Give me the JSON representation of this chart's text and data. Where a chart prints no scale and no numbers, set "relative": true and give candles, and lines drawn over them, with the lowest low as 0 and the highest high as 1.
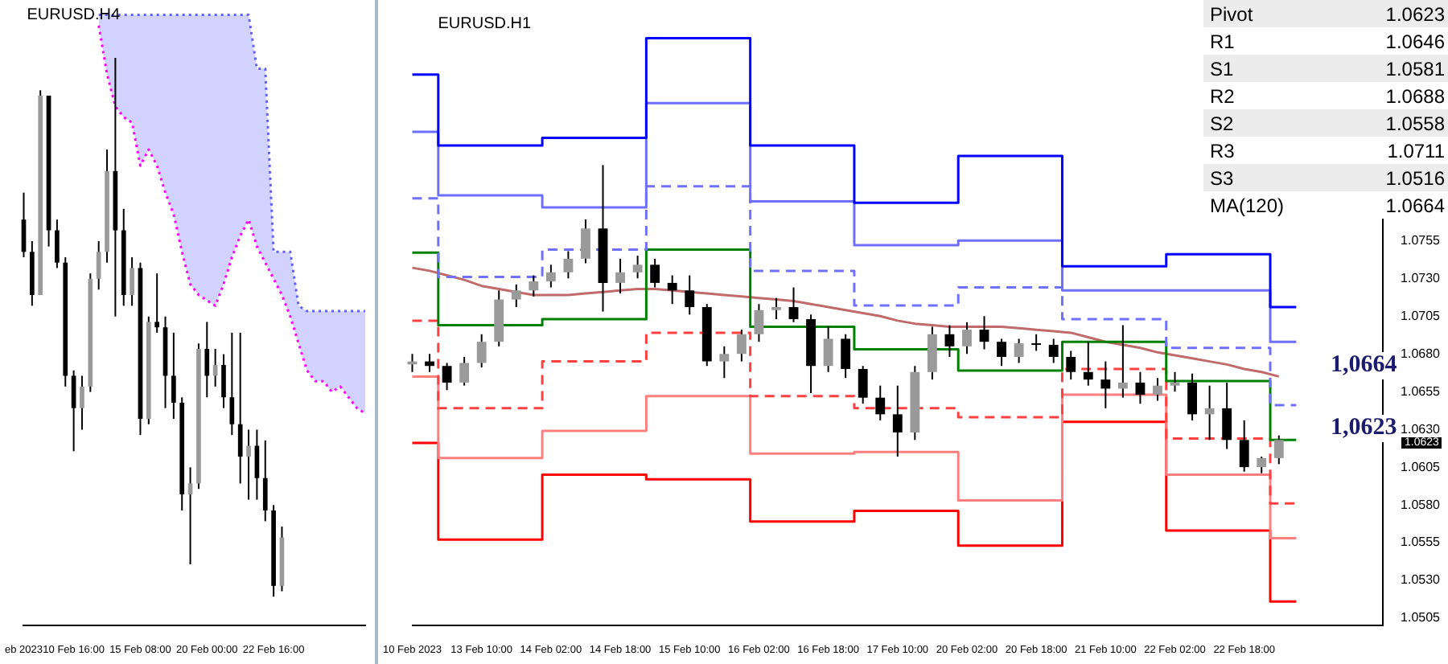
{
  "chart_data": [
    {
      "type": "candlestick",
      "title": "EURUSD.H4",
      "relative": true,
      "tick_labels": "x",
      "categories": [
        "eb 2023",
        null,
        null,
        null,
        null,
        null,
        "10 Feb 16:00",
        null,
        null,
        null,
        null,
        null,
        null,
        null,
        "15 Feb 08:00",
        null,
        null,
        null,
        null,
        null,
        null,
        null,
        "20 Feb 00:00",
        null,
        null,
        null,
        null,
        null,
        null,
        null,
        "22 Feb 16:00",
        null,
        null,
        null,
        null,
        null,
        null,
        null,
        null,
        null,
        null,
        null
      ],
      "ohlc": [
        [
          0.7,
          0.75,
          0.63,
          0.64
        ],
        [
          0.64,
          0.66,
          0.54,
          0.56
        ],
        [
          0.56,
          0.94,
          0.56,
          0.93
        ],
        [
          0.93,
          0.93,
          0.65,
          0.68
        ],
        [
          0.68,
          0.7,
          0.61,
          0.62
        ],
        [
          0.62,
          0.63,
          0.39,
          0.41
        ],
        [
          0.41,
          0.42,
          0.27,
          0.35
        ],
        [
          0.35,
          0.41,
          0.31,
          0.39
        ],
        [
          0.39,
          0.6,
          0.38,
          0.59
        ],
        [
          0.59,
          0.66,
          0.57,
          0.64
        ],
        [
          0.64,
          0.83,
          0.62,
          0.79
        ],
        [
          0.79,
          1.0,
          0.52,
          0.68
        ],
        [
          0.68,
          0.72,
          0.54,
          0.56
        ],
        [
          0.56,
          0.63,
          0.54,
          0.61
        ],
        [
          0.61,
          0.62,
          0.3,
          0.33
        ],
        [
          0.33,
          0.52,
          0.32,
          0.51
        ],
        [
          0.51,
          0.6,
          0.49,
          0.5
        ],
        [
          0.5,
          0.52,
          0.35,
          0.41
        ],
        [
          0.41,
          0.49,
          0.33,
          0.36
        ],
        [
          0.36,
          0.37,
          0.16,
          0.19
        ],
        [
          0.19,
          0.24,
          0.06,
          0.21
        ],
        [
          0.21,
          0.47,
          0.2,
          0.46
        ],
        [
          0.46,
          0.51,
          0.37,
          0.41
        ],
        [
          0.41,
          0.46,
          0.39,
          0.43
        ],
        [
          0.43,
          0.45,
          0.35,
          0.37
        ],
        [
          0.37,
          0.49,
          0.3,
          0.32
        ],
        [
          0.32,
          0.49,
          0.21,
          0.26
        ],
        [
          0.26,
          0.31,
          0.18,
          0.28
        ],
        [
          0.28,
          0.31,
          0.18,
          0.22
        ],
        [
          0.22,
          0.29,
          0.14,
          0.16
        ],
        [
          0.16,
          0.17,
          0.0,
          0.02
        ],
        [
          0.02,
          0.13,
          0.01,
          0.11
        ],
        null,
        null,
        null,
        null,
        null,
        null,
        null,
        null,
        null,
        null
      ],
      "series": [
        {
          "type": "line",
          "color": "#ff00ff",
          "line_style": "dotted",
          "values": [
            null,
            null,
            null,
            null,
            null,
            null,
            null,
            null,
            null,
            1.06,
            0.97,
            0.91,
            0.89,
            0.88,
            0.8,
            0.83,
            0.8,
            0.75,
            0.71,
            0.64,
            0.58,
            0.56,
            0.55,
            0.54,
            0.58,
            0.63,
            0.67,
            0.7,
            0.65,
            0.62,
            0.59,
            0.56,
            0.52,
            0.47,
            0.42,
            0.4,
            0.4,
            0.38,
            0.39,
            0.37,
            0.35,
            0.34
          ]
        },
        {
          "type": "area",
          "color": "#6060ff",
          "line_style": "dotted",
          "values": [
            null,
            null,
            null,
            null,
            null,
            null,
            null,
            null,
            null,
            1.08,
            1.08,
            1.08,
            1.08,
            1.08,
            1.08,
            1.08,
            1.08,
            1.08,
            1.08,
            1.08,
            1.08,
            1.08,
            1.08,
            1.08,
            1.08,
            1.08,
            1.08,
            1.08,
            0.98,
            0.98,
            0.64,
            0.64,
            0.64,
            0.54,
            0.53,
            0.53,
            0.53,
            0.53,
            0.53,
            0.53,
            0.53,
            0.53
          ]
        }
      ]
    },
    {
      "type": "candlestick",
      "title": "EURUSD.H1",
      "categories": [
        "10 Feb 2023",
        null,
        null,
        null,
        "13 Feb 10:00",
        null,
        null,
        null,
        "14 Feb 02:00",
        null,
        null,
        null,
        "14 Feb 18:00",
        null,
        null,
        null,
        "15 Feb 10:00",
        null,
        null,
        null,
        "16 Feb 02:00",
        null,
        null,
        null,
        "16 Feb 18:00",
        null,
        null,
        null,
        "17 Feb 10:00",
        null,
        null,
        null,
        "20 Feb 02:00",
        null,
        null,
        null,
        "20 Feb 18:00",
        null,
        null,
        null,
        "21 Feb 10:00",
        null,
        null,
        null,
        "22 Feb 02:00",
        null,
        null,
        null,
        "22 Feb 18:00",
        null,
        null,
        null,
        null,
        null,
        null,
        null,
        null
      ],
      "ohlc": [
        [
          1.0673,
          1.068,
          1.0668,
          1.0675
        ],
        [
          1.0675,
          1.068,
          1.0668,
          1.0672
        ],
        [
          1.0672,
          1.0674,
          1.0656,
          1.0661
        ],
        [
          1.0661,
          1.0678,
          1.0659,
          1.0674
        ],
        [
          1.0674,
          1.0693,
          1.0671,
          1.0688
        ],
        [
          1.0688,
          1.0722,
          1.0685,
          1.0716
        ],
        [
          1.0716,
          1.0726,
          1.0711,
          1.0722
        ],
        [
          1.0722,
          1.0732,
          1.0718,
          1.0728
        ],
        [
          1.0728,
          1.0739,
          1.0724,
          1.0734
        ],
        [
          1.0734,
          1.0748,
          1.073,
          1.0743
        ],
        [
          1.0743,
          1.0769,
          1.074,
          1.0763
        ],
        [
          1.0763,
          1.0805,
          1.0708,
          1.0727
        ],
        [
          1.0727,
          1.0743,
          1.072,
          1.0734
        ],
        [
          1.0734,
          1.0745,
          1.073,
          1.0739
        ],
        [
          1.0739,
          1.0743,
          1.0724,
          1.0727
        ],
        [
          1.0727,
          1.0732,
          1.0713,
          1.0722
        ],
        [
          1.0722,
          1.0732,
          1.0706,
          1.0711
        ],
        [
          1.0711,
          1.0713,
          1.0672,
          1.0675
        ],
        [
          1.0675,
          1.0685,
          1.0664,
          1.068
        ],
        [
          1.068,
          1.0696,
          1.0675,
          1.0693
        ],
        [
          1.0693,
          1.0713,
          1.0688,
          1.0709
        ],
        [
          1.0709,
          1.0717,
          1.0703,
          1.0711
        ],
        [
          1.0711,
          1.0724,
          1.0701,
          1.0703
        ],
        [
          1.0703,
          1.0706,
          1.0654,
          1.0672
        ],
        [
          1.0672,
          1.0698,
          1.0668,
          1.069
        ],
        [
          1.069,
          1.0693,
          1.0664,
          1.067
        ],
        [
          1.067,
          1.0672,
          1.0647,
          1.0651
        ],
        [
          1.0651,
          1.0659,
          1.0636,
          1.064
        ],
        [
          1.064,
          1.0659,
          1.0612,
          1.0628
        ],
        [
          1.0628,
          1.0672,
          1.0623,
          1.0668
        ],
        [
          1.0668,
          1.0698,
          1.0663,
          1.0693
        ],
        [
          1.0693,
          1.0699,
          1.0678,
          1.0685
        ],
        [
          1.0685,
          1.0701,
          1.068,
          1.0696
        ],
        [
          1.0696,
          1.0705,
          1.0683,
          1.0688
        ],
        [
          1.0688,
          1.069,
          1.0672,
          1.0678
        ],
        [
          1.0678,
          1.069,
          1.0674,
          1.0687
        ],
        [
          1.0687,
          1.0693,
          1.0682,
          1.0686
        ],
        [
          1.0686,
          1.069,
          1.0674,
          1.0678
        ],
        [
          1.0678,
          1.0682,
          1.0663,
          1.0668
        ],
        [
          1.0668,
          1.0688,
          1.0659,
          1.0663
        ],
        [
          1.0663,
          1.0675,
          1.0644,
          1.0657
        ],
        [
          1.0657,
          1.0699,
          1.0651,
          1.0661
        ],
        [
          1.0661,
          1.0668,
          1.0647,
          1.0653
        ],
        [
          1.0653,
          1.0664,
          1.0649,
          1.0659
        ],
        [
          1.0659,
          1.0668,
          1.0655,
          1.0661
        ],
        [
          1.0661,
          1.0667,
          1.0636,
          1.064
        ],
        [
          1.064,
          1.0659,
          1.0623,
          1.0644
        ],
        [
          1.0644,
          1.0661,
          1.0617,
          1.0623
        ],
        [
          1.0623,
          1.0636,
          1.0602,
          1.0605
        ],
        [
          1.0605,
          1.0612,
          1.0601,
          1.0611
        ],
        [
          1.0611,
          1.0626,
          1.0607,
          1.0623
        ],
        null,
        null,
        null,
        null,
        null,
        null
      ],
      "ylim": [
        1.05,
        1.0906
      ],
      "yticks": [
        {
          "value": 1.0505,
          "label": "1.0505"
        },
        {
          "value": 1.053,
          "label": "1.0530"
        },
        {
          "value": 1.0555,
          "label": "1.0555"
        },
        {
          "value": 1.058,
          "label": "1.0580"
        },
        {
          "value": 1.0605,
          "label": "1.0605"
        },
        {
          "value": 1.063,
          "label": "1.0630"
        },
        {
          "value": 1.0655,
          "label": "1.0655"
        },
        {
          "value": 1.068,
          "label": "1.0680"
        },
        {
          "value": 1.0705,
          "label": "1.0705"
        },
        {
          "value": 1.073,
          "label": "1.0730"
        },
        {
          "value": 1.0755,
          "label": "1.0755"
        }
      ],
      "series": [
        {
          "type": "step",
          "color": "#0000ff",
          "values": [
            1.0865,
            1.0865,
            1.0818,
            1.0818,
            1.0818,
            1.0818,
            1.0818,
            1.0818,
            1.0823,
            1.0823,
            1.0823,
            1.0823,
            1.0823,
            1.0823,
            1.0889,
            1.0889,
            1.0889,
            1.0889,
            1.0889,
            1.0889,
            1.0818,
            1.0818,
            1.0818,
            1.0818,
            1.0818,
            1.0818,
            1.078,
            1.078,
            1.078,
            1.078,
            1.078,
            1.078,
            1.0811,
            1.0811,
            1.0811,
            1.0811,
            1.0811,
            1.0811,
            1.0738,
            1.0738,
            1.0738,
            1.0738,
            1.0738,
            1.0738,
            1.0746,
            1.0746,
            1.0746,
            1.0746,
            1.0746,
            1.0746,
            1.0711,
            1.0711,
            null,
            null,
            null,
            null,
            null
          ]
        },
        {
          "type": "step",
          "color": "#6f6fff",
          "values": [
            1.0827,
            1.0827,
            1.0785,
            1.0785,
            1.0785,
            1.0785,
            1.0785,
            1.0785,
            1.0777,
            1.0777,
            1.0777,
            1.0777,
            1.0777,
            1.0777,
            1.0846,
            1.0846,
            1.0846,
            1.0846,
            1.0846,
            1.0846,
            1.0781,
            1.0781,
            1.0781,
            1.0781,
            1.0781,
            1.0781,
            1.0752,
            1.0752,
            1.0752,
            1.0752,
            1.0752,
            1.0752,
            1.0755,
            1.0755,
            1.0755,
            1.0755,
            1.0755,
            1.0755,
            1.0722,
            1.0722,
            1.0722,
            1.0722,
            1.0722,
            1.0722,
            1.0722,
            1.0722,
            1.0722,
            1.0722,
            1.0722,
            1.0722,
            1.0688,
            1.0688,
            null,
            null,
            null,
            null,
            null
          ]
        },
        {
          "type": "step",
          "color": "#7070ff",
          "line_style": "dashed",
          "values": [
            1.0783,
            1.0783,
            1.0731,
            1.0731,
            1.0731,
            1.0731,
            1.0731,
            1.0731,
            1.0749,
            1.0749,
            1.0749,
            1.0749,
            1.0749,
            1.0749,
            1.0791,
            1.0791,
            1.0791,
            1.0791,
            1.0791,
            1.0791,
            1.0735,
            1.0735,
            1.0735,
            1.0735,
            1.0735,
            1.0735,
            1.0712,
            1.0712,
            1.0712,
            1.0712,
            1.0712,
            1.0712,
            1.0724,
            1.0724,
            1.0724,
            1.0724,
            1.0724,
            1.0724,
            1.0703,
            1.0703,
            1.0703,
            1.0703,
            1.0703,
            1.0703,
            1.0684,
            1.0684,
            1.0684,
            1.0684,
            1.0684,
            1.0684,
            1.0646,
            1.0646,
            null,
            null,
            null,
            null,
            null
          ]
        },
        {
          "type": "step",
          "color": "#008000",
          "values": [
            1.0747,
            1.0747,
            1.0699,
            1.0699,
            1.0699,
            1.0699,
            1.0699,
            1.0699,
            1.0703,
            1.0703,
            1.0703,
            1.0703,
            1.0703,
            1.0703,
            1.0749,
            1.0749,
            1.0749,
            1.0749,
            1.0749,
            1.0749,
            1.0698,
            1.0698,
            1.0698,
            1.0698,
            1.0698,
            1.0698,
            1.0683,
            1.0683,
            1.0683,
            1.0683,
            1.0683,
            1.0683,
            1.0669,
            1.0669,
            1.0669,
            1.0669,
            1.0669,
            1.0669,
            1.0688,
            1.0688,
            1.0688,
            1.0688,
            1.0688,
            1.0688,
            1.0662,
            1.0662,
            1.0662,
            1.0662,
            1.0662,
            1.0662,
            1.0623,
            1.0623,
            null,
            null,
            null,
            null,
            null
          ]
        },
        {
          "type": "step",
          "color": "#ff4040",
          "line_style": "dashed",
          "values": [
            1.0702,
            1.0702,
            1.0644,
            1.0644,
            1.0644,
            1.0644,
            1.0644,
            1.0644,
            1.0675,
            1.0675,
            1.0675,
            1.0675,
            1.0675,
            1.0675,
            1.0694,
            1.0694,
            1.0694,
            1.0694,
            1.0694,
            1.0694,
            1.0652,
            1.0652,
            1.0652,
            1.0652,
            1.0652,
            1.0652,
            1.0644,
            1.0644,
            1.0644,
            1.0644,
            1.0644,
            1.0644,
            1.0638,
            1.0638,
            1.0638,
            1.0638,
            1.0638,
            1.0638,
            1.067,
            1.067,
            1.067,
            1.067,
            1.067,
            1.067,
            1.0624,
            1.0624,
            1.0624,
            1.0624,
            1.0624,
            1.0624,
            1.0581,
            1.0581,
            null,
            null,
            null,
            null,
            null
          ]
        },
        {
          "type": "step",
          "color": "#ff7f7f",
          "values": [
            1.0665,
            1.0665,
            1.0611,
            1.0611,
            1.0611,
            1.0611,
            1.0611,
            1.0611,
            1.0629,
            1.0629,
            1.0629,
            1.0629,
            1.0629,
            1.0629,
            1.0652,
            1.0652,
            1.0652,
            1.0652,
            1.0652,
            1.0652,
            1.0614,
            1.0614,
            1.0614,
            1.0614,
            1.0614,
            1.0614,
            1.0615,
            1.0615,
            1.0615,
            1.0615,
            1.0615,
            1.0615,
            1.0583,
            1.0583,
            1.0583,
            1.0583,
            1.0583,
            1.0583,
            1.0653,
            1.0653,
            1.0653,
            1.0653,
            1.0653,
            1.0653,
            1.06,
            1.06,
            1.06,
            1.06,
            1.06,
            1.06,
            1.0558,
            1.0558,
            null,
            null,
            null,
            null,
            null
          ]
        },
        {
          "type": "step",
          "color": "#ff0000",
          "values": [
            1.0621,
            1.0621,
            1.0557,
            1.0557,
            1.0557,
            1.0557,
            1.0557,
            1.0557,
            1.06,
            1.06,
            1.06,
            1.06,
            1.06,
            1.06,
            1.0597,
            1.0597,
            1.0597,
            1.0597,
            1.0597,
            1.0597,
            1.0569,
            1.0569,
            1.0569,
            1.0569,
            1.0569,
            1.0569,
            1.0576,
            1.0576,
            1.0576,
            1.0576,
            1.0576,
            1.0576,
            1.0553,
            1.0553,
            1.0553,
            1.0553,
            1.0553,
            1.0553,
            1.0635,
            1.0635,
            1.0635,
            1.0635,
            1.0635,
            1.0635,
            1.0563,
            1.0563,
            1.0563,
            1.0563,
            1.0563,
            1.0563,
            1.0516,
            1.0516,
            null,
            null,
            null,
            null,
            null
          ]
        },
        {
          "type": "line",
          "color": "#c06a6a",
          "values": [
            1.0737,
            1.0735,
            1.0732,
            1.0729,
            1.0725,
            1.0723,
            1.0721,
            1.0719,
            1.0719,
            1.0719,
            1.072,
            1.0721,
            1.0722,
            1.0723,
            1.0723,
            1.0722,
            1.0721,
            1.072,
            1.0719,
            1.0718,
            1.0717,
            1.0716,
            1.0715,
            1.0713,
            1.0711,
            1.0709,
            1.0707,
            1.0705,
            1.0702,
            1.07,
            1.0699,
            1.0698,
            1.0698,
            1.0698,
            1.0698,
            1.0697,
            1.0696,
            1.0695,
            1.0694,
            1.0691,
            1.0688,
            1.0686,
            1.0684,
            1.0681,
            1.0679,
            1.0677,
            1.0675,
            1.0673,
            1.067,
            1.0668,
            1.0665,
            null,
            null,
            null,
            null,
            null,
            null
          ]
        }
      ],
      "annotations": [
        "Pivot",
        "1.0623",
        "R1",
        "1.0646",
        "S1",
        "1.0581",
        "R2",
        "1.0688",
        "S2",
        "1.0558",
        "R3",
        "1.0711",
        "S3",
        "1.0516",
        "MA(120)",
        "1.0664",
        "1,0664",
        "1,0623",
        "1.0623"
      ]
    }
  ]
}
